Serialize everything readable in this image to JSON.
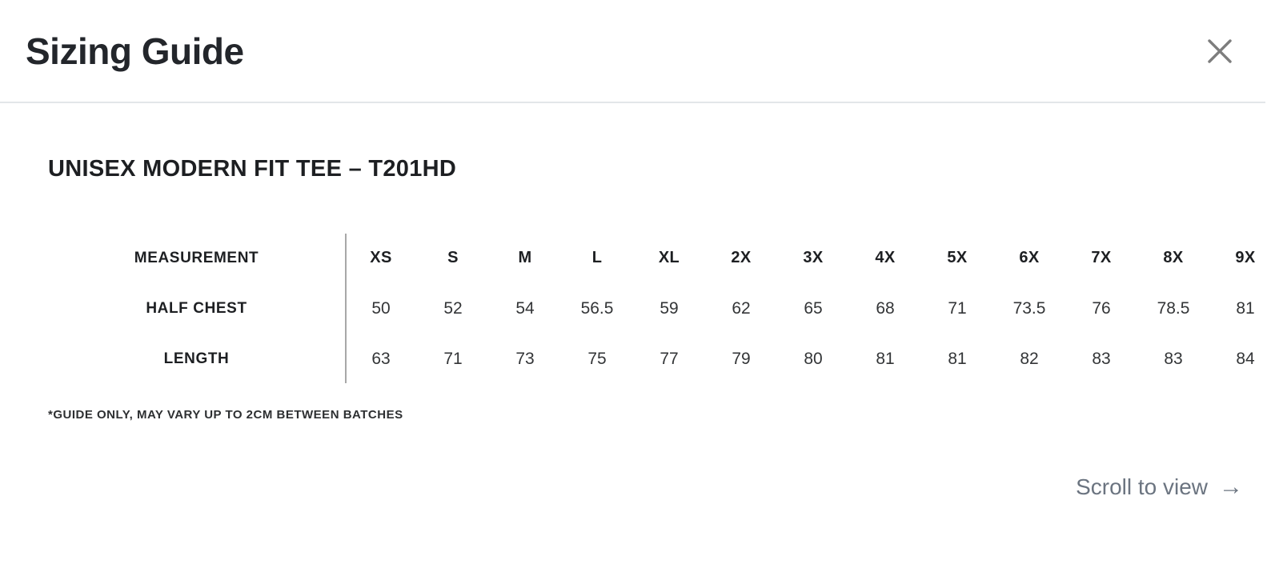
{
  "modal": {
    "title": "Sizing Guide",
    "close_label": "Close"
  },
  "product": {
    "heading": "UNISEX MODERN FIT TEE – T201HD"
  },
  "size_table": {
    "header_label": "MEASUREMENT",
    "columns": [
      "XS",
      "S",
      "M",
      "L",
      "XL",
      "2X",
      "3X",
      "4X",
      "5X",
      "6X",
      "7X",
      "8X",
      "9X"
    ],
    "rows": [
      {
        "label": "HALF CHEST",
        "values": [
          "50",
          "52",
          "54",
          "56.5",
          "59",
          "62",
          "65",
          "68",
          "71",
          "73.5",
          "76",
          "78.5",
          "81"
        ]
      },
      {
        "label": "LENGTH",
        "values": [
          "63",
          "71",
          "73",
          "75",
          "77",
          "79",
          "80",
          "81",
          "81",
          "82",
          "83",
          "83",
          "84"
        ]
      }
    ],
    "footnote": "*GUIDE ONLY, MAY VARY UP TO 2CM BETWEEN BATCHES"
  },
  "scroll_hint": {
    "label": "Scroll to view",
    "arrow": "→"
  },
  "colors": {
    "title_text": "#23262b",
    "table_text": "#1d1f22",
    "value_text": "#333537",
    "icon_gray": "#7d7d7d",
    "hint_gray": "#6b7480",
    "header_divider": "#e3e6e9",
    "table_rule": "#a8a8a8"
  }
}
